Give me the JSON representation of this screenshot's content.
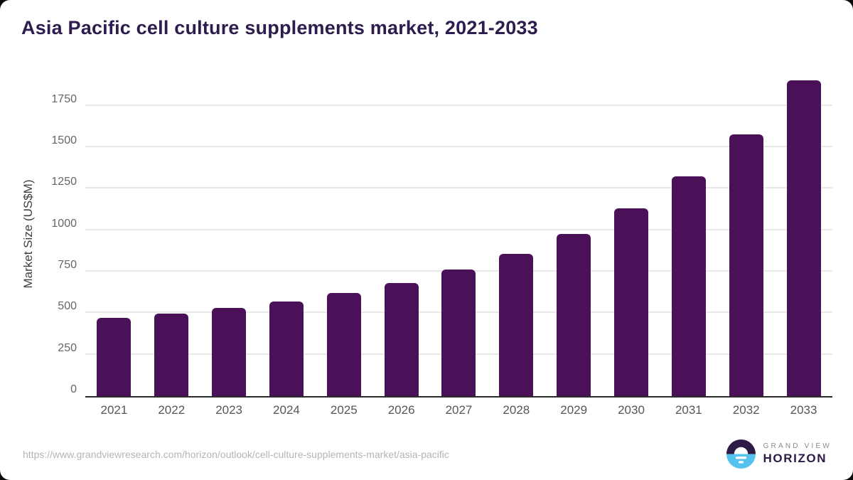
{
  "title": "Asia Pacific cell culture supplements market, 2021-2033",
  "chart_data": {
    "type": "bar",
    "title": "Asia Pacific cell culture supplements market, 2021-2033",
    "categories": [
      "2021",
      "2022",
      "2023",
      "2024",
      "2025",
      "2026",
      "2027",
      "2028",
      "2029",
      "2030",
      "2031",
      "2032",
      "2033"
    ],
    "values": [
      470,
      497,
      531,
      570,
      620,
      682,
      762,
      856,
      977,
      1130,
      1324,
      1577,
      1905
    ],
    "xlabel": "",
    "ylabel": "Market Size (US$M)",
    "ylim": [
      0,
      1950
    ],
    "yticks": [
      0,
      250,
      500,
      750,
      1000,
      1250,
      1500,
      1750
    ],
    "grid": true,
    "legend": "none",
    "bar_color": "#4a1158"
  },
  "colors": {
    "title": "#2f1c4e",
    "bar": "#4a1158",
    "gridline": "#e9e9e9",
    "axis_line": "#2b2b2b",
    "tick_label": "#666666",
    "logo_purple": "#2e1a47",
    "logo_blue": "#56c2ee"
  },
  "footer": {
    "source_url": "https://www.grandviewresearch.com/horizon/outlook/cell-culture-supplements-market/asia-pacific",
    "logo": {
      "line1": "GRAND VIEW",
      "line2": "HORIZON"
    }
  }
}
